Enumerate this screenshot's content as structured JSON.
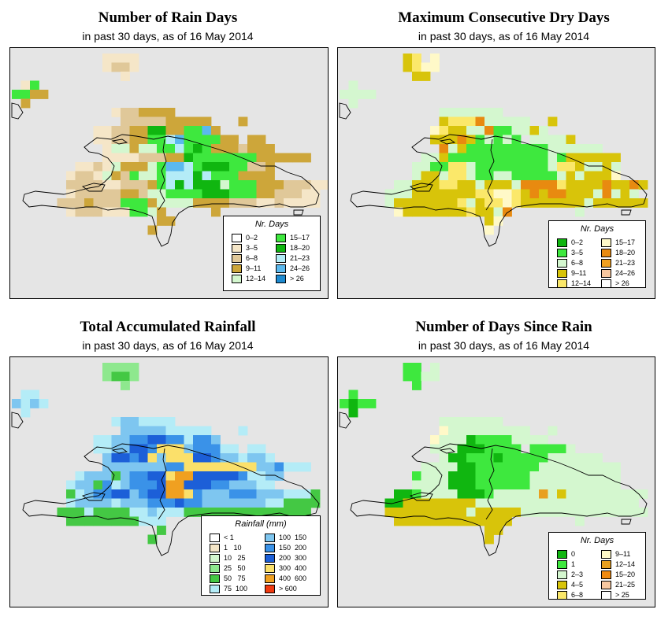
{
  "panels": [
    {
      "title": "Number of Rain Days",
      "subtitle": "in past 30 days, as of  16 May 2014",
      "legend": {
        "title": "Nr. Days",
        "columns": 2,
        "items": [
          {
            "label": "0–2",
            "color": "#ffffff"
          },
          {
            "label": "3–5",
            "color": "#f5e6c8"
          },
          {
            "label": "6–8",
            "color": "#e0c899"
          },
          {
            "label": "9–11",
            "color": "#cda63a"
          },
          {
            "label": "12–14",
            "color": "#d4f7cf"
          },
          {
            "label": "15–17",
            "color": "#3ee83e"
          },
          {
            "label": "18–20",
            "color": "#10b610"
          },
          {
            "label": "21–23",
            "color": "#b4ecf7"
          },
          {
            "label": "24–26",
            "color": "#5bb9ee"
          },
          {
            "label": "> 26",
            "color": "#1d8ad0"
          }
        ]
      },
      "colors": [
        "#e5e5e5",
        "#f5e6c8",
        "#e0c899",
        "#cda63a",
        "#d4f7cf",
        "#3ee83e",
        "#10b610",
        "#b4ecf7",
        "#5bb9ee"
      ]
    },
    {
      "title": "Maximum Consecutive Dry Days",
      "subtitle": "in past 30 days, as of  16 May 2014",
      "legend": {
        "title": "Nr. Days",
        "columns": 2,
        "items": [
          {
            "label": "0–2",
            "color": "#10b610"
          },
          {
            "label": "3–5",
            "color": "#3ee83e"
          },
          {
            "label": "6–8",
            "color": "#d4f7cf"
          },
          {
            "label": "9–11",
            "color": "#d8c40a"
          },
          {
            "label": "12–14",
            "color": "#fbe86a"
          },
          {
            "label": "15–17",
            "color": "#fff9c8"
          },
          {
            "label": "18–20",
            "color": "#e88a10"
          },
          {
            "label": "21–23",
            "color": "#f0a020"
          },
          {
            "label": "24–26",
            "color": "#f8c8a0"
          },
          {
            "label": "> 26",
            "color": "#ffffff"
          }
        ]
      },
      "colors": [
        "#e5e5e5",
        "#d4f7cf",
        "#3ee83e",
        "#d8c40a",
        "#fbe86a",
        "#fff9c8",
        "#e88a10"
      ]
    },
    {
      "title": "Total Accumulated Rainfall",
      "subtitle": "in past 30 days, as of  16 May 2014",
      "legend": {
        "title": "Rainfall (mm)",
        "columns": 2,
        "items": [
          {
            "label": "< 1",
            "color": "#ffffff"
          },
          {
            "label": "1   10",
            "color": "#f5e6c8"
          },
          {
            "label": "10   25",
            "color": "#d4f7cf"
          },
          {
            "label": "25   50",
            "color": "#8ee88e"
          },
          {
            "label": "50   75",
            "color": "#44c844"
          },
          {
            "label": "75  100",
            "color": "#b4ecf7"
          },
          {
            "label": "100  150",
            "color": "#7ec6f0"
          },
          {
            "label": "150  200",
            "color": "#3a92e8"
          },
          {
            "label": "200  300",
            "color": "#1c5fd8"
          },
          {
            "label": "300  400",
            "color": "#fbe06a"
          },
          {
            "label": "400  600",
            "color": "#f0a020"
          },
          {
            "label": "> 600",
            "color": "#f03a10"
          }
        ]
      },
      "colors": [
        "#e5e5e5",
        "#8ee88e",
        "#44c844",
        "#b4ecf7",
        "#7ec6f0",
        "#3a92e8",
        "#1c5fd8",
        "#fbe06a",
        "#f0a020"
      ]
    },
    {
      "title": "Number of Days Since Rain",
      "subtitle": "in past 30 days, as of  16 May 2014",
      "legend": {
        "title": "Nr. Days",
        "columns": 2,
        "items": [
          {
            "label": "0",
            "color": "#10b610"
          },
          {
            "label": "1",
            "color": "#3ee83e"
          },
          {
            "label": "2–3",
            "color": "#d4f7cf"
          },
          {
            "label": "4–5",
            "color": "#d8c40a"
          },
          {
            "label": "6–8",
            "color": "#fbe86a"
          },
          {
            "label": "9–11",
            "color": "#fff9c8"
          },
          {
            "label": "12–14",
            "color": "#e8a020"
          },
          {
            "label": "15–20",
            "color": "#f08a10"
          },
          {
            "label": "21–25",
            "color": "#f8c8a0"
          },
          {
            "label": "> 25",
            "color": "#ffffff"
          }
        ]
      },
      "colors": [
        "#e5e5e5",
        "#10b610",
        "#3ee83e",
        "#d4f7cf",
        "#d8c40a",
        "#fbe86a",
        "#e8a020",
        "#fff9c8"
      ]
    }
  ],
  "grids": [
    [
      "..........1111......................",
      "..........1221......................",
      "............1.......................",
      ".15.................................",
      "5533................................",
      ".3..................................",
      "...........1223333..................",
      "............2222233333...3..........",
      ".........11223366335583.............",
      ".........1122335578555533.33.........",
      "..........1443445575653332333........",
      "..........11112223365555555333333...",
      ".......1121433345887566655223........",
      "......12214325445777675553333.........",
      "......22221122235767666455533322211..",
      "......1222223324455556665553322211..",
      ".....22232225553444433332221121111..",
      "......12221115543.....3.................",
      "................33......................",
      "...............3........................",
      "......................................."
    ],
    [
      ".......34.5...........................",
      ".......3455...........................",
      "........33............................",
      ".1....................................",
      "1111..................................",
      ".1....................................",
      "...........1111111....................",
      "...........3444611111..3..............",
      "..........5433116221131...............",
      "..........3336321212.11113...........",
      "...........613222222222111111........",
      ".........1132222222222212333333.......",
      "........11224412222222214431131.......",
      "........13314412211222221313335.......",
      "......1133344331333166664333363363...",
      ".....1113333333445543636633316131....",
      ".....13333333413445433333331333333...",
      "......5333333343316.......1............",
      "................35......................",
      "................5........................",
      "........................................"
    ],
    [
      "..........1111........................",
      "..........1221........................",
      "............1.........................",
      ".33...................................",
      "4343..................................",
      ".3....................................",
      "...........3443333....................",
      "............4444433333...3............",
      ".........33445566553554...............",
      ".........3344665777455533.33...........",
      "..........4665674777665443443..........",
      "..........44444445577777777445333......",
      ".......34442455667886666653344.........",
      "......34425345556886665544433.........",
      "......2345566456688754445554443332....",
      "......3444434445556554444444332222....",
      ".....2223222233433322222222222222....",
      "......22222222333.....2..............",
      "................2......................",
      "...............2.......................",
      "......................................."
    ],
    [
      ".......22.3...........................",
      ".......2233...........................",
      "........2.............................",
      ".2....................................",
      "2122..................................",
      ".1....................................",
      "...........3333333....................",
      "...........7333333333..3..............",
      "..........7333122223333...............",
      "..........3331112222.22223...........",
      "...........311222122222333333........",
      ".........3333112222222333333333.......",
      "........23331112222223333333333.......",
      "........33331112222223333333333.......",
      "......1123333111233333634333333333...",
      ".....1144444444333333333333333333....",
      ".....44444444434444433333333333333...",
      "......4444444444444.......3...........",
      "................44......................",
      "................4.......................",
      "........................................"
    ]
  ]
}
